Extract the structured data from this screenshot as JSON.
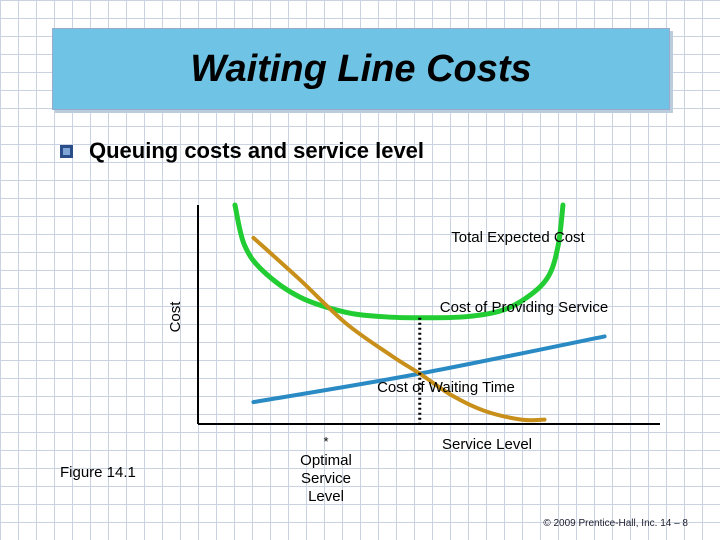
{
  "slide": {
    "title": "Waiting Line Costs",
    "bullet": "Queuing costs and service level",
    "figure_label": "Figure 14.1",
    "footer": "© 2009 Prentice-Hall, Inc.    14 – 8"
  },
  "chart_data": {
    "type": "line",
    "ylabel": "Cost",
    "xlabel": "Service Level",
    "optimum_marker": "*",
    "optimum_label": [
      "Optimal",
      "Service",
      "Level"
    ],
    "x_range": [
      0,
      100
    ],
    "y_range": [
      0,
      100
    ],
    "optimal_x": 48,
    "series": [
      {
        "name": "Total Expected Cost",
        "color": "#22cc33",
        "points": [
          [
            8,
            100
          ],
          [
            10,
            82
          ],
          [
            14,
            70
          ],
          [
            22,
            58
          ],
          [
            32,
            51
          ],
          [
            40,
            49
          ],
          [
            48,
            48.5
          ],
          [
            58,
            49
          ],
          [
            66,
            52
          ],
          [
            72,
            59
          ],
          [
            76,
            68
          ],
          [
            78,
            82
          ],
          [
            79,
            100
          ]
        ]
      },
      {
        "name": "Cost of Providing Service",
        "color": "#2a8ac4",
        "points": [
          [
            12,
            10
          ],
          [
            48,
            23
          ],
          [
            88,
            40
          ]
        ]
      },
      {
        "name": "Cost of Waiting Time",
        "color": "#c8901a",
        "points": [
          [
            12,
            85
          ],
          [
            22,
            66
          ],
          [
            32,
            46
          ],
          [
            42,
            31
          ],
          [
            48,
            23
          ],
          [
            55,
            13
          ],
          [
            62,
            6
          ],
          [
            70,
            2
          ],
          [
            75,
            2
          ]
        ]
      }
    ],
    "series_labels": {
      "total": "Total Expected Cost",
      "providing": "Cost of Providing Service",
      "waiting": "Cost of Waiting Time"
    }
  }
}
